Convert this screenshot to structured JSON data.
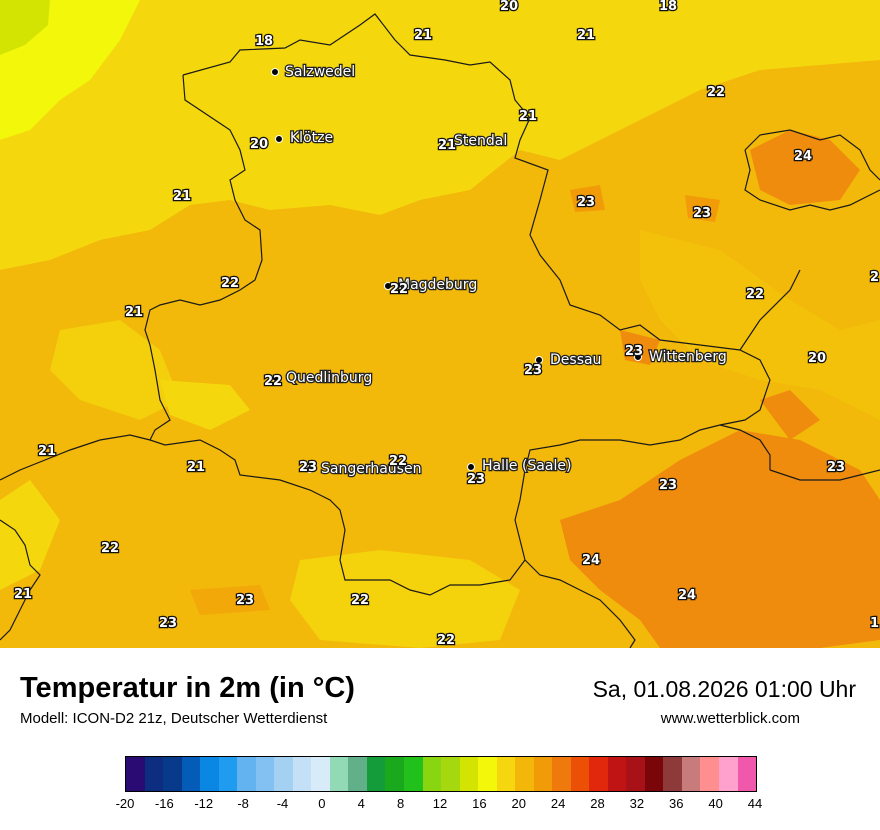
{
  "map": {
    "cities": [
      {
        "name": "Salzwedel"
      },
      {
        "name": "Klötze"
      },
      {
        "name": "Stendal"
      },
      {
        "name": "Magdeburg"
      },
      {
        "name": "Dessau"
      },
      {
        "name": "Wittenberg"
      },
      {
        "name": "Quedlinburg"
      },
      {
        "name": "Sangerhausen"
      },
      {
        "name": "Halle (Saale)"
      }
    ],
    "temperature_labels": [
      "20",
      "18",
      "18",
      "21",
      "21",
      "22",
      "24",
      "20",
      "21",
      "23",
      "23",
      "21",
      "22",
      "22",
      "2",
      "21",
      "20",
      "23",
      "23",
      "21",
      "21",
      "22",
      "22",
      "23",
      "23",
      "22",
      "24",
      "23",
      "24",
      "21",
      "22",
      "23",
      "23",
      "22",
      "1",
      "21",
      "22",
      "22",
      "23",
      "23"
    ]
  },
  "footer": {
    "title": "Temperatur in 2m (in °C)",
    "model": "Modell: ICON-D2 21z, Deutscher Wetterdienst",
    "datetime": "Sa, 01.08.2026 01:00 Uhr",
    "website": "www.wetterblick.com"
  },
  "colorbar": {
    "colors": [
      "#2a0a73",
      "#0d2d80",
      "#073a8a",
      "#055cb8",
      "#0a87e3",
      "#1f9bf0",
      "#63b3f0",
      "#83c1f2",
      "#a4d0f2",
      "#c3e0f7",
      "#d8ebf9",
      "#92d9b6",
      "#61b08a",
      "#149c3b",
      "#1aa81d",
      "#22c01a",
      "#88d510",
      "#a6d810",
      "#d4e402",
      "#f3f70a",
      "#f6d70f",
      "#f3b709",
      "#f19b08",
      "#f0790d",
      "#ec5006",
      "#e1270c",
      "#c01414",
      "#a91118",
      "#7b060a",
      "#8e3a3a",
      "#c77b7b",
      "#ff8f8f",
      "#ffa1cc",
      "#f059ab"
    ],
    "ticks": [
      "-20",
      "-16",
      "-12",
      "-8",
      "-4",
      "0",
      "4",
      "8",
      "12",
      "16",
      "20",
      "24",
      "28",
      "32",
      "36",
      "40",
      "44"
    ]
  }
}
